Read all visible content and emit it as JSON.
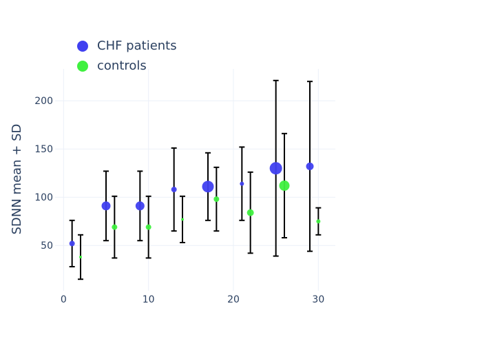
{
  "chart_data": {
    "type": "scatter",
    "title": "",
    "xlabel": "",
    "ylabel": "SDNN mean + SD",
    "xlim": [
      -1,
      32
    ],
    "ylim": [
      3,
      233
    ],
    "x_ticks": [
      0,
      10,
      20,
      30
    ],
    "y_ticks": [
      50,
      100,
      150,
      200
    ],
    "grid": true,
    "legend_position": "top-left",
    "series": [
      {
        "name": "CHF patients",
        "color": "#4040f0",
        "points": [
          {
            "x": 1,
            "y": 52,
            "sd": 24,
            "size": 6
          },
          {
            "x": 5,
            "y": 91,
            "sd": 36,
            "size": 11
          },
          {
            "x": 9,
            "y": 91,
            "sd": 36,
            "size": 11
          },
          {
            "x": 13,
            "y": 108,
            "sd": 43,
            "size": 6
          },
          {
            "x": 17,
            "y": 111,
            "sd": 35,
            "size": 15
          },
          {
            "x": 21,
            "y": 114,
            "sd": 38,
            "size": 4
          },
          {
            "x": 25,
            "y": 130,
            "sd": 91,
            "size": 16
          },
          {
            "x": 29,
            "y": 132,
            "sd": 88,
            "size": 9
          }
        ]
      },
      {
        "name": "controls",
        "color": "#3ff03f",
        "points": [
          {
            "x": 2,
            "y": 38,
            "sd": 23,
            "size": 2
          },
          {
            "x": 6,
            "y": 69,
            "sd": 32,
            "size": 6
          },
          {
            "x": 10,
            "y": 69,
            "sd": 32,
            "size": 6
          },
          {
            "x": 14,
            "y": 77,
            "sd": 24,
            "size": 2
          },
          {
            "x": 18,
            "y": 98,
            "sd": 33,
            "size": 6
          },
          {
            "x": 22,
            "y": 84,
            "sd": 42,
            "size": 8
          },
          {
            "x": 26,
            "y": 112,
            "sd": 54,
            "size": 13
          },
          {
            "x": 30,
            "y": 75,
            "sd": 14,
            "size": 4
          }
        ]
      }
    ]
  }
}
